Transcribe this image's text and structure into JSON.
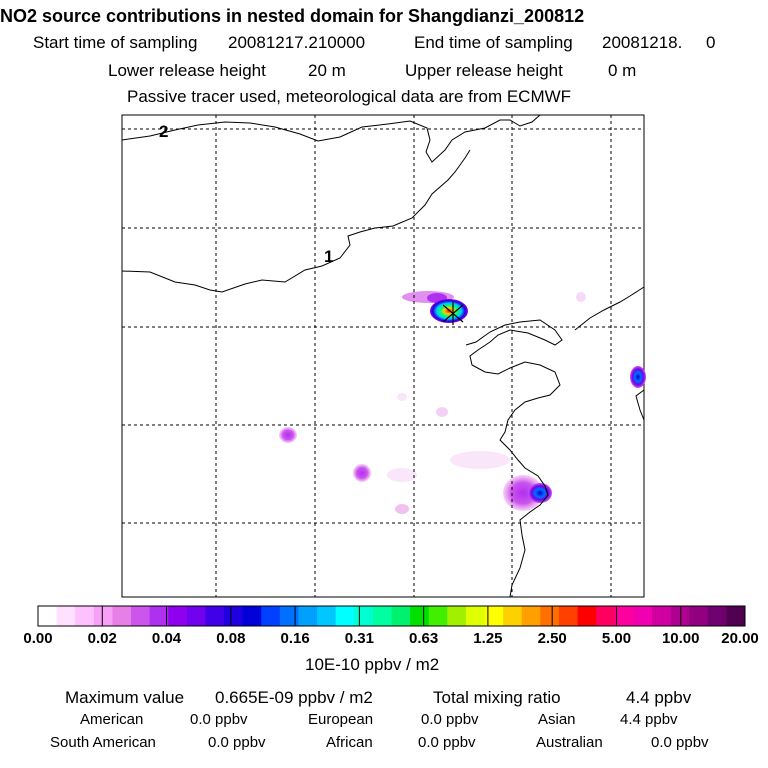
{
  "header": {
    "title": "NO2 source contributions in nested domain for Shangdianzi_200812",
    "start_label": "Start time of sampling",
    "start_value": "20081217.210000",
    "end_label": "End time of sampling",
    "end_value": "20081218.     0",
    "lower_label": "Lower release height",
    "lower_value": "20 m",
    "upper_label": "Upper release height",
    "upper_value": "0 m",
    "tracer_note": "Passive tracer used, meteorological data are from ECMWF"
  },
  "map": {
    "contour_labels": [
      "2",
      "1"
    ],
    "release_marker": "x-marker-icon"
  },
  "colorbar": {
    "tick_labels": [
      "0.00",
      "0.02",
      "0.04",
      "0.08",
      "0.16",
      "0.31",
      "0.63",
      "1.25",
      "2.50",
      "5.00",
      "10.00",
      "20.00"
    ],
    "colors": [
      "#ffffff",
      "#ffe0ff",
      "#ffc0ff",
      "#f7a0f7",
      "#e680e6",
      "#cc55ee",
      "#b030f0",
      "#9000f0",
      "#7000ee",
      "#4000e8",
      "#2000e0",
      "#0000d8",
      "#0040ff",
      "#0070ff",
      "#00a0ff",
      "#00c8ff",
      "#00ffff",
      "#00ffd0",
      "#00ffa0",
      "#00f070",
      "#00e000",
      "#40f000",
      "#a0f000",
      "#e0ff00",
      "#ffff00",
      "#ffd000",
      "#ffa000",
      "#ff7000",
      "#ff4000",
      "#ff0000",
      "#ff0060",
      "#ff00a0",
      "#f000b0",
      "#d000a0",
      "#b00090",
      "#900080",
      "#700070",
      "#500050"
    ],
    "units": "10E-10 ppbv / m2"
  },
  "summary": {
    "max_label": "Maximum value",
    "max_value": "0.665E-09 ppbv / m2",
    "total_label": "Total mixing ratio",
    "total_value": "4.4 ppbv",
    "regions": [
      {
        "name": "American",
        "value": "0.0 ppbv"
      },
      {
        "name": "European",
        "value": "0.0 ppbv"
      },
      {
        "name": "Asian",
        "value": "4.4 ppbv"
      },
      {
        "name": "South American",
        "value": "0.0 ppbv"
      },
      {
        "name": "African",
        "value": "0.0 ppbv"
      },
      {
        "name": "Australian",
        "value": "0.0 ppbv"
      }
    ]
  }
}
